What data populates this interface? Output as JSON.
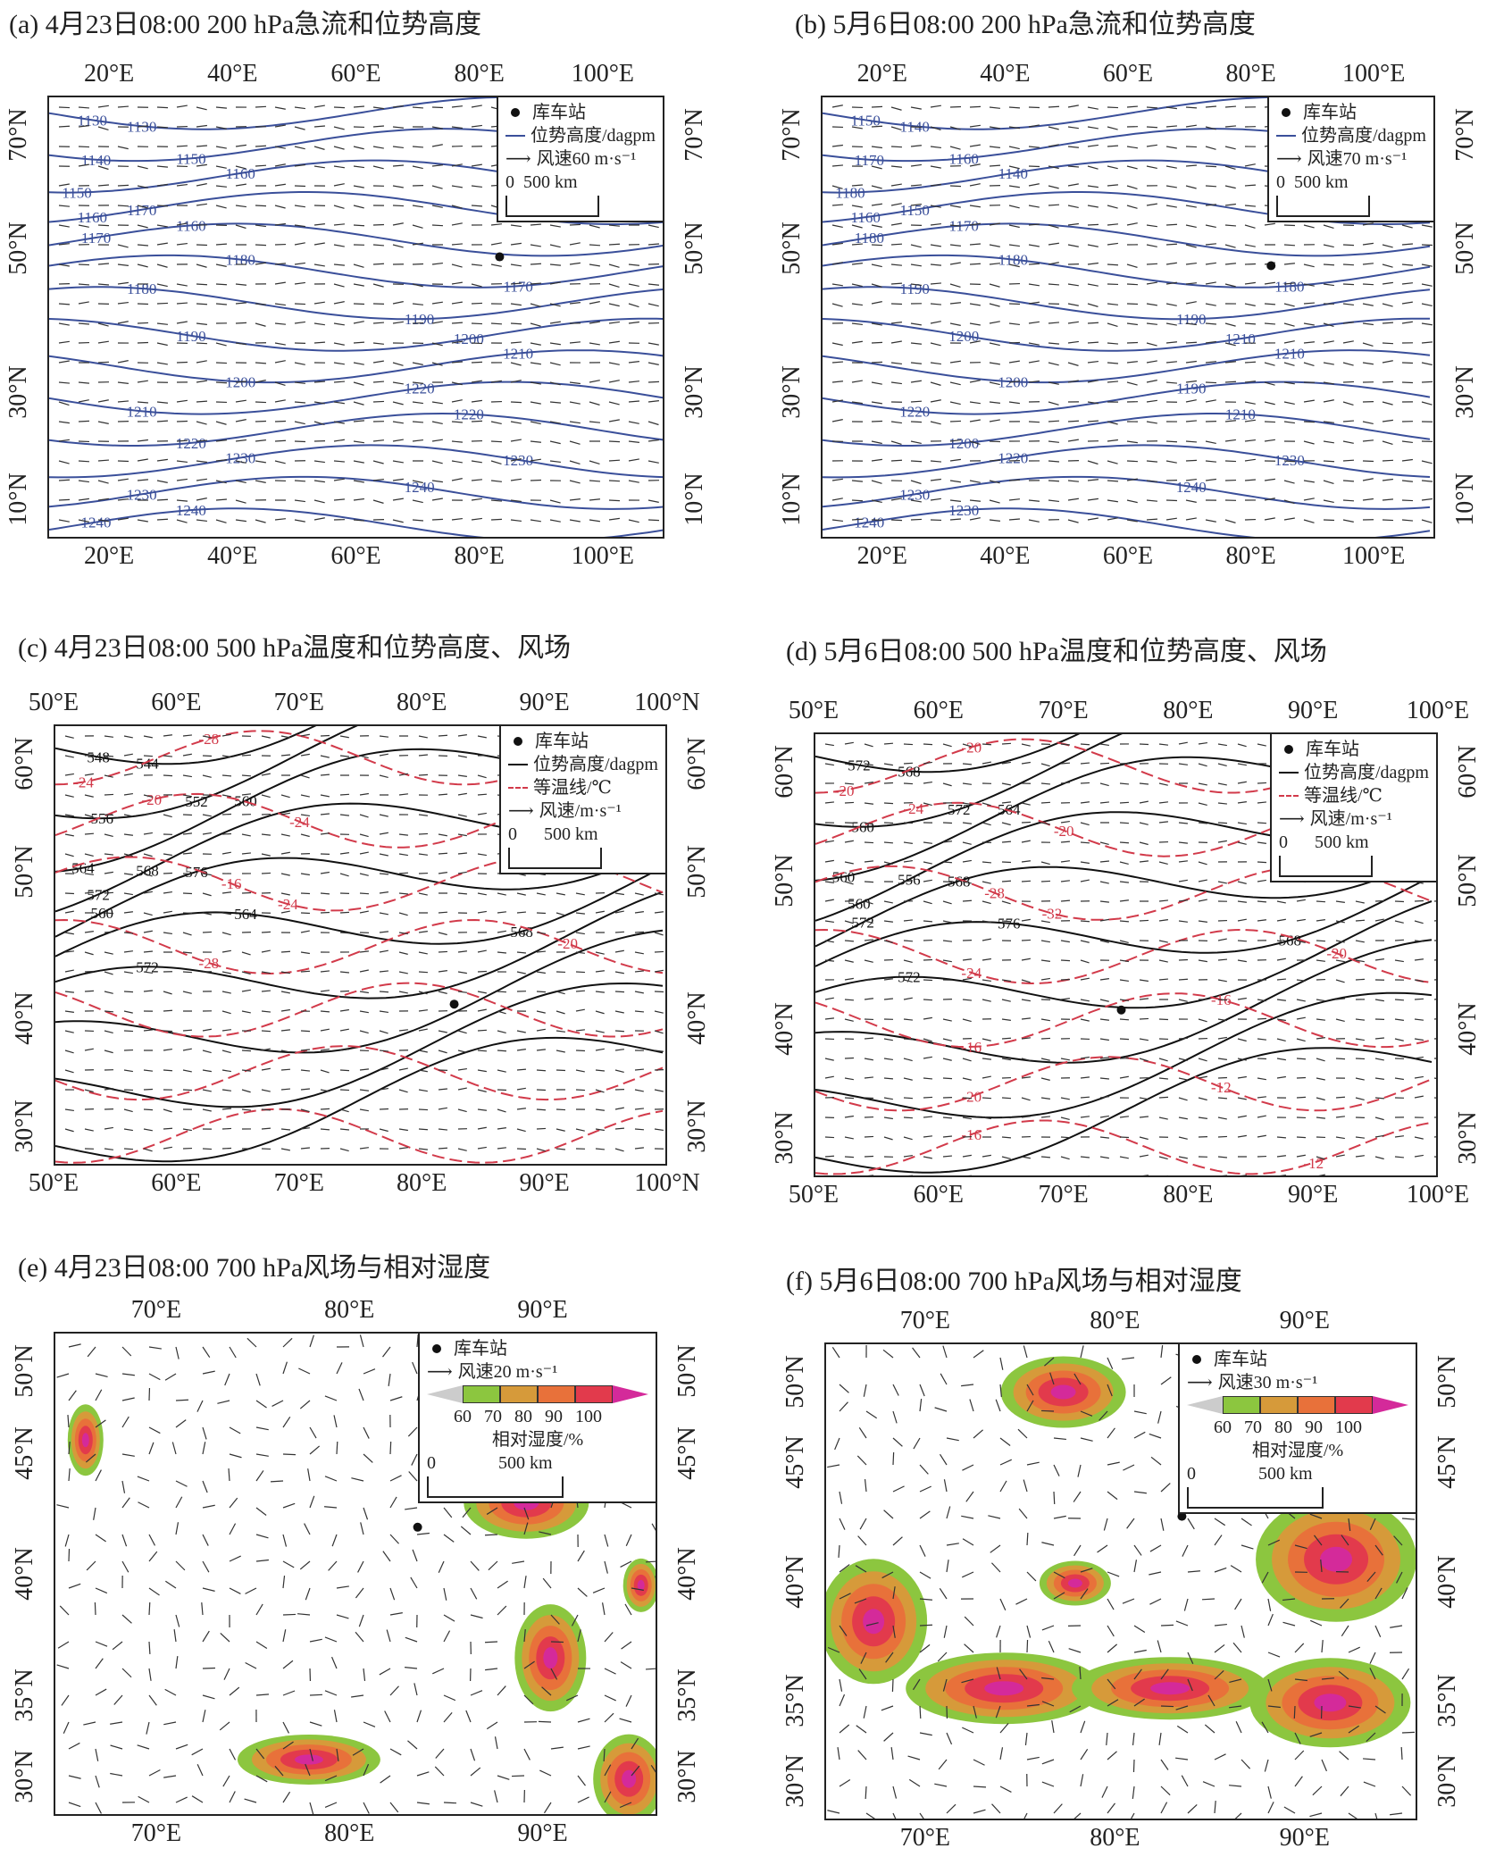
{
  "colors": {
    "geopotential_blue": "#3a4f9a",
    "isotherm_red": "#d23a4a",
    "rh": [
      "#8cc63f",
      "#d69a3a",
      "#e8713a",
      "#e23a4c",
      "#d42a9a"
    ]
  },
  "station": "库车站",
  "panels": [
    {
      "id": "a",
      "title": "(a) 4月23日08:00 200 hPa急流和位势高度",
      "type": "jet",
      "x_ticks": [
        "20°E",
        "40°E",
        "60°E",
        "80°E",
        "100°E"
      ],
      "y_ticks": [
        "70°N",
        "50°N",
        "30°N",
        "10°N"
      ],
      "legend": {
        "station": "库车站",
        "height": "位势高度/dagpm",
        "wind": "风速60 m·s⁻¹",
        "scale": "0  500 km"
      },
      "contour_labels": [
        "1130",
        "1130",
        "1150",
        "1140",
        "1160",
        "1150",
        "1170",
        "1160",
        "1160",
        "1170",
        "1180",
        "1170",
        "1180",
        "1190",
        "1190",
        "1200",
        "1200",
        "1210",
        "1210",
        "1220",
        "1220",
        "1220",
        "1230",
        "1230",
        "1230",
        "1240",
        "1240",
        "1240"
      ]
    },
    {
      "id": "b",
      "title": "(b) 5月6日08:00 200 hPa急流和位势高度",
      "type": "jet",
      "x_ticks": [
        "20°E",
        "40°E",
        "60°E",
        "80°E",
        "100°E"
      ],
      "y_ticks": [
        "70°N",
        "50°N",
        "30°N",
        "10°N"
      ],
      "legend": {
        "station": "库车站",
        "height": "位势高度/dagpm",
        "wind": "风速70 m·s⁻¹",
        "scale": "0  500 km"
      },
      "contour_labels": [
        "1140",
        "1150",
        "1160",
        "1170",
        "1140",
        "1180",
        "1150",
        "1160",
        "1170",
        "1180",
        "1180",
        "1180",
        "1190",
        "1190",
        "1200",
        "1210",
        "1200",
        "1210",
        "1220",
        "1190",
        "1200",
        "1210",
        "1220",
        "1230",
        "1230",
        "1240",
        "1230",
        "1240"
      ]
    },
    {
      "id": "c",
      "title": "(c) 4月23日08:00 500 hPa温度和位势高度、风场",
      "type": "temp",
      "x_ticks": [
        "50°E",
        "60°E",
        "70°E",
        "80°E",
        "90°E",
        "100°N"
      ],
      "y_ticks": [
        "60°N",
        "50°N",
        "40°N",
        "30°N"
      ],
      "legend": {
        "station": "库车站",
        "height": "位势高度/dagpm",
        "temp": "等温线/℃",
        "wind": "风速/m·s⁻¹",
        "scale": "0      500 km"
      },
      "contour_labels": [
        "544",
        "548",
        "552",
        "556",
        "560",
        "564",
        "568",
        "572",
        "576",
        "560",
        "564",
        "568",
        "572"
      ],
      "temp_labels": [
        "-28",
        "-24",
        "-24",
        "-20",
        "-16",
        "-24",
        "-28",
        "-20"
      ]
    },
    {
      "id": "d",
      "title": "(d) 5月6日08:00 500 hPa温度和位势高度、风场",
      "type": "temp",
      "x_ticks": [
        "50°E",
        "60°E",
        "70°E",
        "80°E",
        "90°E",
        "100°E"
      ],
      "y_ticks": [
        "60°N",
        "50°N",
        "40°N",
        "30°N"
      ],
      "legend": {
        "station": "库车站",
        "height": "位势高度/dagpm",
        "temp": "等温线/℃",
        "wind": "风速/m·s⁻¹",
        "scale": "0      500 km"
      },
      "contour_labels": [
        "568",
        "572",
        "572",
        "560",
        "564",
        "560",
        "556",
        "560",
        "568",
        "572",
        "576",
        "568",
        "572"
      ],
      "temp_labels": [
        "-20",
        "-20",
        "-20",
        "-24",
        "-28",
        "-32",
        "-24",
        "-20",
        "-16",
        "-16",
        "-20",
        "-12",
        "-16",
        "-12"
      ]
    },
    {
      "id": "e",
      "title": "(e) 4月23日08:00 700 hPa风场与相对湿度",
      "type": "rh",
      "x_ticks": [
        "70°E",
        "80°E",
        "90°E"
      ],
      "y_ticks": [
        "50°N",
        "45°N",
        "40°N",
        "35°N",
        "30°N"
      ],
      "legend": {
        "station": "库车站",
        "wind": "风速20 m·s⁻¹",
        "cbar_ticks": [
          "60",
          "70",
          "80",
          "90",
          "100"
        ],
        "cbar_label": "相对湿度/%",
        "scale": "0              500 km"
      }
    },
    {
      "id": "f",
      "title": "(f) 5月6日08:00 700 hPa风场与相对湿度",
      "type": "rh",
      "x_ticks": [
        "70°E",
        "80°E",
        "90°E"
      ],
      "y_ticks": [
        "50°N",
        "45°N",
        "40°N",
        "35°N",
        "30°N"
      ],
      "legend": {
        "station": "库车站",
        "wind": "风速30 m·s⁻¹",
        "cbar_ticks": [
          "60",
          "70",
          "80",
          "90",
          "100"
        ],
        "cbar_label": "相对湿度/%",
        "scale": "0              500 km"
      }
    }
  ]
}
